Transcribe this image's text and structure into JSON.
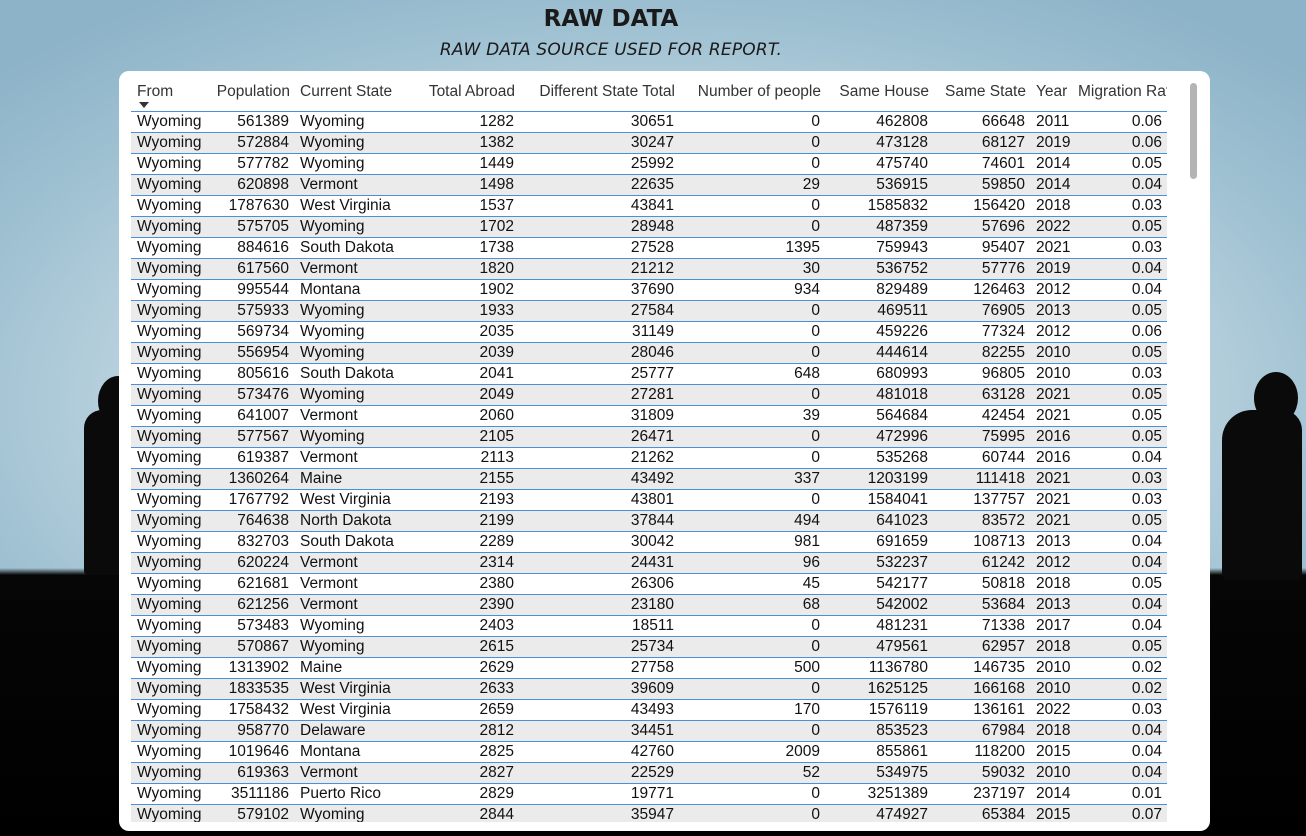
{
  "page": {
    "title": "RAW DATA",
    "subtitle": "RAW DATA SOURCE USED FOR REPORT."
  },
  "table": {
    "sorted_column": "From",
    "columns": [
      {
        "label": "From",
        "align": "left"
      },
      {
        "label": "Population",
        "align": "right"
      },
      {
        "label": "Current State",
        "align": "left"
      },
      {
        "label": "Total Abroad",
        "align": "right"
      },
      {
        "label": "Different State Total",
        "align": "right"
      },
      {
        "label": "Number of people",
        "align": "right"
      },
      {
        "label": "Same House",
        "align": "right"
      },
      {
        "label": "Same State",
        "align": "right"
      },
      {
        "label": "Year",
        "align": "left"
      },
      {
        "label": "Migration Rate",
        "align": "right"
      }
    ],
    "rows": [
      [
        "Wyoming",
        "561389",
        "Wyoming",
        "1282",
        "30651",
        "0",
        "462808",
        "66648",
        "2011",
        "0.06"
      ],
      [
        "Wyoming",
        "572884",
        "Wyoming",
        "1382",
        "30247",
        "0",
        "473128",
        "68127",
        "2019",
        "0.06"
      ],
      [
        "Wyoming",
        "577782",
        "Wyoming",
        "1449",
        "25992",
        "0",
        "475740",
        "74601",
        "2014",
        "0.05"
      ],
      [
        "Wyoming",
        "620898",
        "Vermont",
        "1498",
        "22635",
        "29",
        "536915",
        "59850",
        "2014",
        "0.04"
      ],
      [
        "Wyoming",
        "1787630",
        "West Virginia",
        "1537",
        "43841",
        "0",
        "1585832",
        "156420",
        "2018",
        "0.03"
      ],
      [
        "Wyoming",
        "575705",
        "Wyoming",
        "1702",
        "28948",
        "0",
        "487359",
        "57696",
        "2022",
        "0.05"
      ],
      [
        "Wyoming",
        "884616",
        "South Dakota",
        "1738",
        "27528",
        "1395",
        "759943",
        "95407",
        "2021",
        "0.03"
      ],
      [
        "Wyoming",
        "617560",
        "Vermont",
        "1820",
        "21212",
        "30",
        "536752",
        "57776",
        "2019",
        "0.04"
      ],
      [
        "Wyoming",
        "995544",
        "Montana",
        "1902",
        "37690",
        "934",
        "829489",
        "126463",
        "2012",
        "0.04"
      ],
      [
        "Wyoming",
        "575933",
        "Wyoming",
        "1933",
        "27584",
        "0",
        "469511",
        "76905",
        "2013",
        "0.05"
      ],
      [
        "Wyoming",
        "569734",
        "Wyoming",
        "2035",
        "31149",
        "0",
        "459226",
        "77324",
        "2012",
        "0.06"
      ],
      [
        "Wyoming",
        "556954",
        "Wyoming",
        "2039",
        "28046",
        "0",
        "444614",
        "82255",
        "2010",
        "0.05"
      ],
      [
        "Wyoming",
        "805616",
        "South Dakota",
        "2041",
        "25777",
        "648",
        "680993",
        "96805",
        "2010",
        "0.03"
      ],
      [
        "Wyoming",
        "573476",
        "Wyoming",
        "2049",
        "27281",
        "0",
        "481018",
        "63128",
        "2021",
        "0.05"
      ],
      [
        "Wyoming",
        "641007",
        "Vermont",
        "2060",
        "31809",
        "39",
        "564684",
        "42454",
        "2021",
        "0.05"
      ],
      [
        "Wyoming",
        "577567",
        "Wyoming",
        "2105",
        "26471",
        "0",
        "472996",
        "75995",
        "2016",
        "0.05"
      ],
      [
        "Wyoming",
        "619387",
        "Vermont",
        "2113",
        "21262",
        "0",
        "535268",
        "60744",
        "2016",
        "0.04"
      ],
      [
        "Wyoming",
        "1360264",
        "Maine",
        "2155",
        "43492",
        "337",
        "1203199",
        "111418",
        "2021",
        "0.03"
      ],
      [
        "Wyoming",
        "1767792",
        "West Virginia",
        "2193",
        "43801",
        "0",
        "1584041",
        "137757",
        "2021",
        "0.03"
      ],
      [
        "Wyoming",
        "764638",
        "North Dakota",
        "2199",
        "37844",
        "494",
        "641023",
        "83572",
        "2021",
        "0.05"
      ],
      [
        "Wyoming",
        "832703",
        "South Dakota",
        "2289",
        "30042",
        "981",
        "691659",
        "108713",
        "2013",
        "0.04"
      ],
      [
        "Wyoming",
        "620224",
        "Vermont",
        "2314",
        "24431",
        "96",
        "532237",
        "61242",
        "2012",
        "0.04"
      ],
      [
        "Wyoming",
        "621681",
        "Vermont",
        "2380",
        "26306",
        "45",
        "542177",
        "50818",
        "2018",
        "0.05"
      ],
      [
        "Wyoming",
        "621256",
        "Vermont",
        "2390",
        "23180",
        "68",
        "542002",
        "53684",
        "2013",
        "0.04"
      ],
      [
        "Wyoming",
        "573483",
        "Wyoming",
        "2403",
        "18511",
        "0",
        "481231",
        "71338",
        "2017",
        "0.04"
      ],
      [
        "Wyoming",
        "570867",
        "Wyoming",
        "2615",
        "25734",
        "0",
        "479561",
        "62957",
        "2018",
        "0.05"
      ],
      [
        "Wyoming",
        "1313902",
        "Maine",
        "2629",
        "27758",
        "500",
        "1136780",
        "146735",
        "2010",
        "0.02"
      ],
      [
        "Wyoming",
        "1833535",
        "West Virginia",
        "2633",
        "39609",
        "0",
        "1625125",
        "166168",
        "2010",
        "0.02"
      ],
      [
        "Wyoming",
        "1758432",
        "West Virginia",
        "2659",
        "43493",
        "170",
        "1576119",
        "136161",
        "2022",
        "0.03"
      ],
      [
        "Wyoming",
        "958770",
        "Delaware",
        "2812",
        "34451",
        "0",
        "853523",
        "67984",
        "2018",
        "0.04"
      ],
      [
        "Wyoming",
        "1019646",
        "Montana",
        "2825",
        "42760",
        "2009",
        "855861",
        "118200",
        "2015",
        "0.04"
      ],
      [
        "Wyoming",
        "619363",
        "Vermont",
        "2827",
        "22529",
        "52",
        "534975",
        "59032",
        "2010",
        "0.04"
      ],
      [
        "Wyoming",
        "3511186",
        "Puerto Rico",
        "2829",
        "19771",
        "0",
        "3251389",
        "237197",
        "2014",
        "0.01"
      ],
      [
        "Wyoming",
        "579102",
        "Wyoming",
        "2844",
        "35947",
        "0",
        "474927",
        "65384",
        "2015",
        "0.07"
      ]
    ]
  },
  "scrollbar": {
    "position_fraction": 0.0,
    "visible_fraction": 0.13
  },
  "colors": {
    "row_separator": "#4a90d9",
    "alt_row_bg": "#ebebeb",
    "card_bg": "#ffffff"
  }
}
